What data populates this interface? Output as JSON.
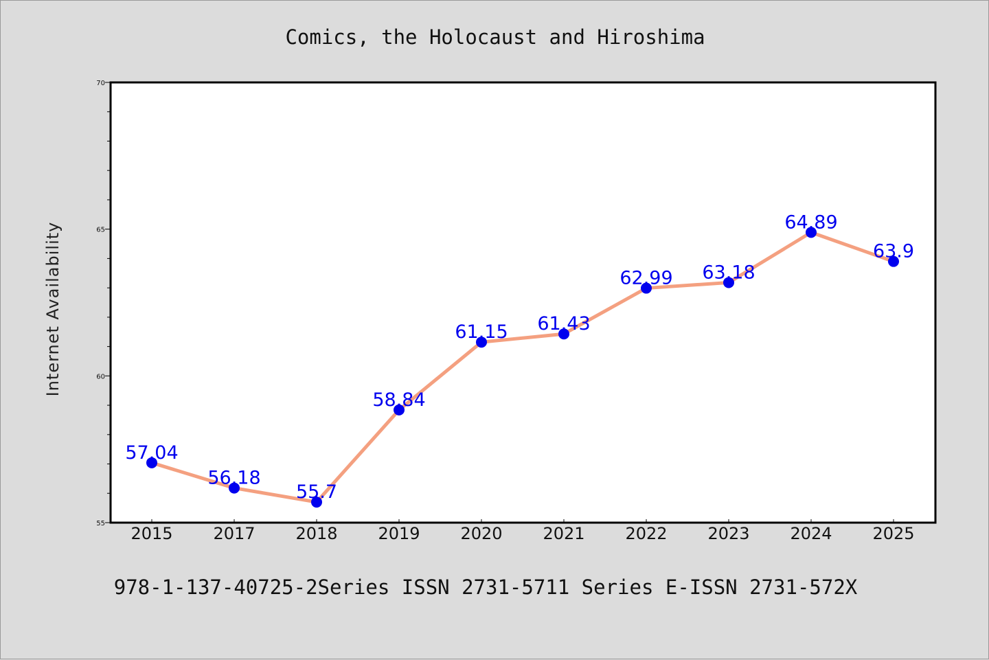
{
  "chart_data": {
    "type": "line",
    "title": "Comics, the Holocaust and Hiroshima",
    "ylabel": "Internet Availability",
    "xlabel": "",
    "footer": "978-1-137-40725-2Series ISSN 2731-5711 Series E-ISSN 2731-572X",
    "categories": [
      "2015",
      "2017",
      "2018",
      "2019",
      "2020",
      "2021",
      "2022",
      "2023",
      "2024",
      "2025"
    ],
    "series": [
      {
        "values": [
          57.04,
          56.18,
          55.7,
          58.84,
          61.15,
          61.43,
          62.99,
          63.18,
          64.89,
          63.9
        ],
        "labels": [
          "57.04",
          "56.18",
          "55.7",
          "58.84",
          "61.15",
          "61.43",
          "62.99",
          "63.18",
          "64.89",
          "63.9"
        ]
      }
    ],
    "ylim": [
      55,
      70
    ],
    "yticks": [
      "55",
      "60",
      "65",
      "70"
    ],
    "yminor_step": 1,
    "grid": false,
    "line_color": "#f4a080",
    "marker_color": "#0000ee",
    "label_color": "#0000ee"
  }
}
